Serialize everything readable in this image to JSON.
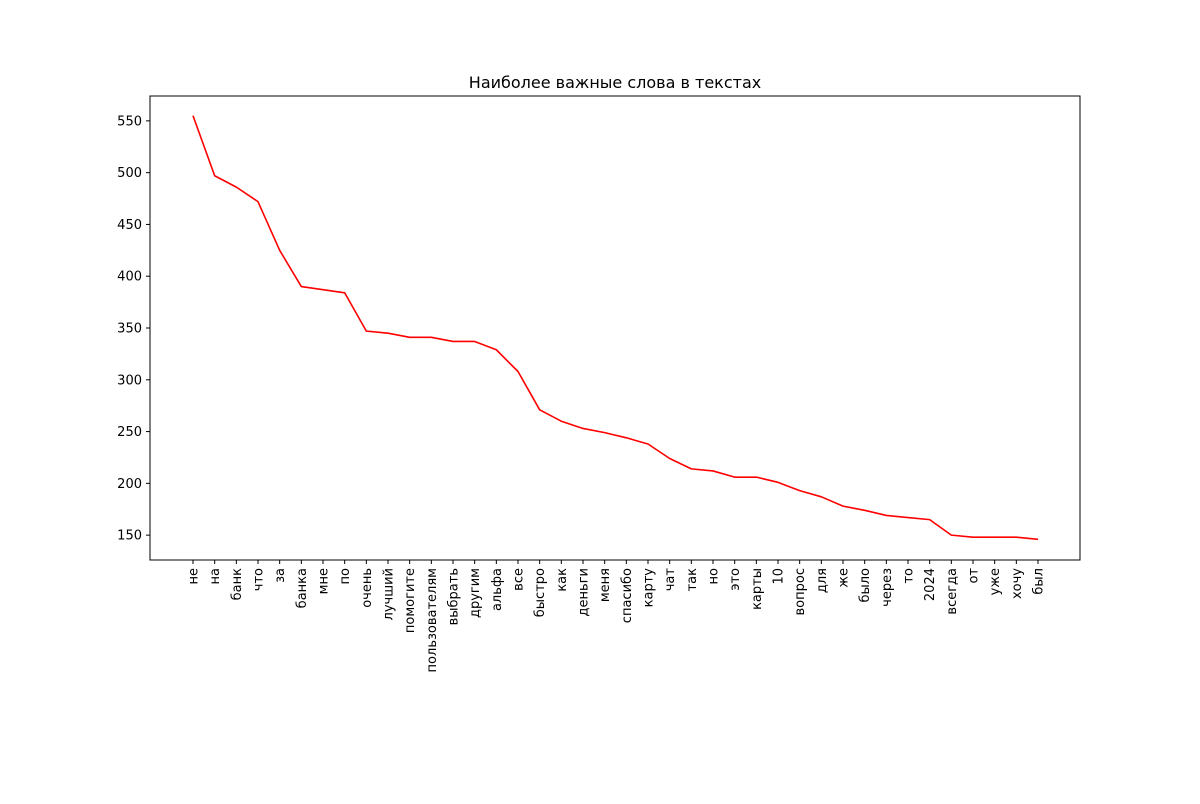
{
  "chart_data": {
    "type": "line",
    "title": "Наиболее важные слова в текстах",
    "xlabel": "",
    "ylabel": "",
    "categories": [
      "не",
      "на",
      "банк",
      "что",
      "за",
      "банка",
      "мне",
      "по",
      "очень",
      "лучший",
      "помогите",
      "пользователям",
      "выбрать",
      "другим",
      "альфа",
      "все",
      "быстро",
      "как",
      "деньги",
      "меня",
      "спасибо",
      "карту",
      "чат",
      "так",
      "но",
      "это",
      "карты",
      "10",
      "вопрос",
      "для",
      "же",
      "было",
      "через",
      "то",
      "2024",
      "всегда",
      "от",
      "уже",
      "хочу",
      "был"
    ],
    "series": [
      {
        "color": "#ff0000",
        "values": [
          555,
          497,
          486,
          472,
          425,
          390,
          387,
          384,
          347,
          345,
          341,
          341,
          337,
          337,
          329,
          308,
          271,
          260,
          253,
          249,
          244,
          238,
          224,
          214,
          212,
          206,
          206,
          201,
          193,
          187,
          178,
          174,
          169,
          167,
          165,
          150,
          148,
          148,
          148,
          146
        ]
      }
    ],
    "ylim": [
      126,
      574
    ],
    "yticks": [
      150,
      200,
      250,
      300,
      350,
      400,
      450,
      500,
      550
    ],
    "grid": false,
    "legend": "none"
  }
}
